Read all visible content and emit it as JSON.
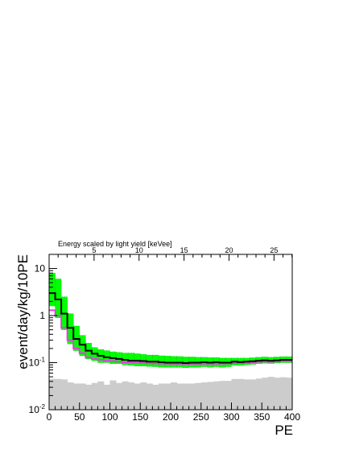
{
  "chart_data": {
    "type": "histogram",
    "xlabel": "PE",
    "ylabel": "event/day/kg/10PE",
    "top_axis_label": "Energy scaled by light yield [keVee]",
    "xlim": [
      0,
      400
    ],
    "ylim_log10": [
      -2,
      1.3
    ],
    "y_scale": "log",
    "bin_width_pe": 10,
    "x_ticks": [
      "0",
      "50",
      "100",
      "150",
      "200",
      "250",
      "300",
      "350",
      "400"
    ],
    "y_ticks": [
      {
        "base": "10",
        "exp": "-2"
      },
      {
        "base": "10",
        "exp": "-1"
      },
      {
        "base": "1",
        "exp": ""
      },
      {
        "base": "10",
        "exp": ""
      }
    ],
    "top_ticks": [
      "5",
      "10",
      "15",
      "20",
      "25"
    ],
    "top_tick_values_keVee": [
      5,
      10,
      15,
      20,
      25
    ],
    "pe_per_keVee": 14.8,
    "colors": {
      "data_line": "#000000",
      "green_band": "#00ff00",
      "green_band_edge": "#00cc00",
      "magenta_line": "#e040e0",
      "gray_fill": "#cccccc",
      "axis": "#000000"
    },
    "series": [
      {
        "name": "",
        "style": "black-step-line",
        "values": [
          3.0,
          2.2,
          1.1,
          0.55,
          0.32,
          0.24,
          0.18,
          0.155,
          0.14,
          0.13,
          0.125,
          0.12,
          0.115,
          0.11,
          0.11,
          0.108,
          0.105,
          0.105,
          0.102,
          0.1,
          0.1,
          0.1,
          0.098,
          0.1,
          0.1,
          0.102,
          0.1,
          0.102,
          0.1,
          0.1,
          0.105,
          0.103,
          0.105,
          0.107,
          0.11,
          0.112,
          0.11,
          0.112,
          0.115,
          0.115
        ]
      },
      {
        "name": "",
        "style": "green-uncertainty-band",
        "lower": [
          1.6,
          0.9,
          0.5,
          0.25,
          0.18,
          0.14,
          0.12,
          0.11,
          0.1,
          0.1,
          0.095,
          0.095,
          0.09,
          0.088,
          0.085,
          0.085,
          0.083,
          0.082,
          0.08,
          0.08,
          0.08,
          0.08,
          0.078,
          0.08,
          0.08,
          0.082,
          0.08,
          0.082,
          0.08,
          0.082,
          0.088,
          0.088,
          0.09,
          0.092,
          0.095,
          0.097,
          0.096,
          0.098,
          0.1,
          0.1
        ],
        "upper": [
          8.0,
          6.0,
          2.5,
          1.1,
          0.6,
          0.38,
          0.26,
          0.21,
          0.19,
          0.18,
          0.17,
          0.165,
          0.16,
          0.16,
          0.155,
          0.15,
          0.145,
          0.145,
          0.14,
          0.138,
          0.136,
          0.135,
          0.132,
          0.132,
          0.13,
          0.13,
          0.128,
          0.128,
          0.125,
          0.125,
          0.125,
          0.125,
          0.125,
          0.127,
          0.13,
          0.132,
          0.13,
          0.132,
          0.134,
          0.134
        ]
      },
      {
        "name": "",
        "style": "magenta-step-line",
        "values": [
          1.3,
          1.0,
          0.55,
          0.3,
          0.2,
          0.16,
          0.13,
          0.12,
          0.115,
          0.11,
          0.108,
          0.105,
          0.102,
          0.1,
          0.1,
          0.098,
          0.097,
          0.096,
          0.095,
          0.095,
          0.094,
          0.094,
          0.093,
          0.094,
          0.094,
          0.095,
          0.094,
          0.095,
          0.095,
          0.096,
          0.098,
          0.098,
          0.1,
          0.102,
          0.104,
          0.105,
          0.104,
          0.106,
          0.108,
          0.108
        ]
      },
      {
        "name": "",
        "style": "gray-filled-histogram",
        "values": [
          0.045,
          0.045,
          0.044,
          0.038,
          0.036,
          0.036,
          0.034,
          0.037,
          0.04,
          0.034,
          0.042,
          0.037,
          0.04,
          0.038,
          0.036,
          0.038,
          0.036,
          0.034,
          0.036,
          0.036,
          0.038,
          0.036,
          0.036,
          0.036,
          0.037,
          0.038,
          0.039,
          0.04,
          0.041,
          0.041,
          0.045,
          0.045,
          0.044,
          0.044,
          0.046,
          0.048,
          0.05,
          0.048,
          0.049,
          0.048
        ]
      }
    ]
  }
}
